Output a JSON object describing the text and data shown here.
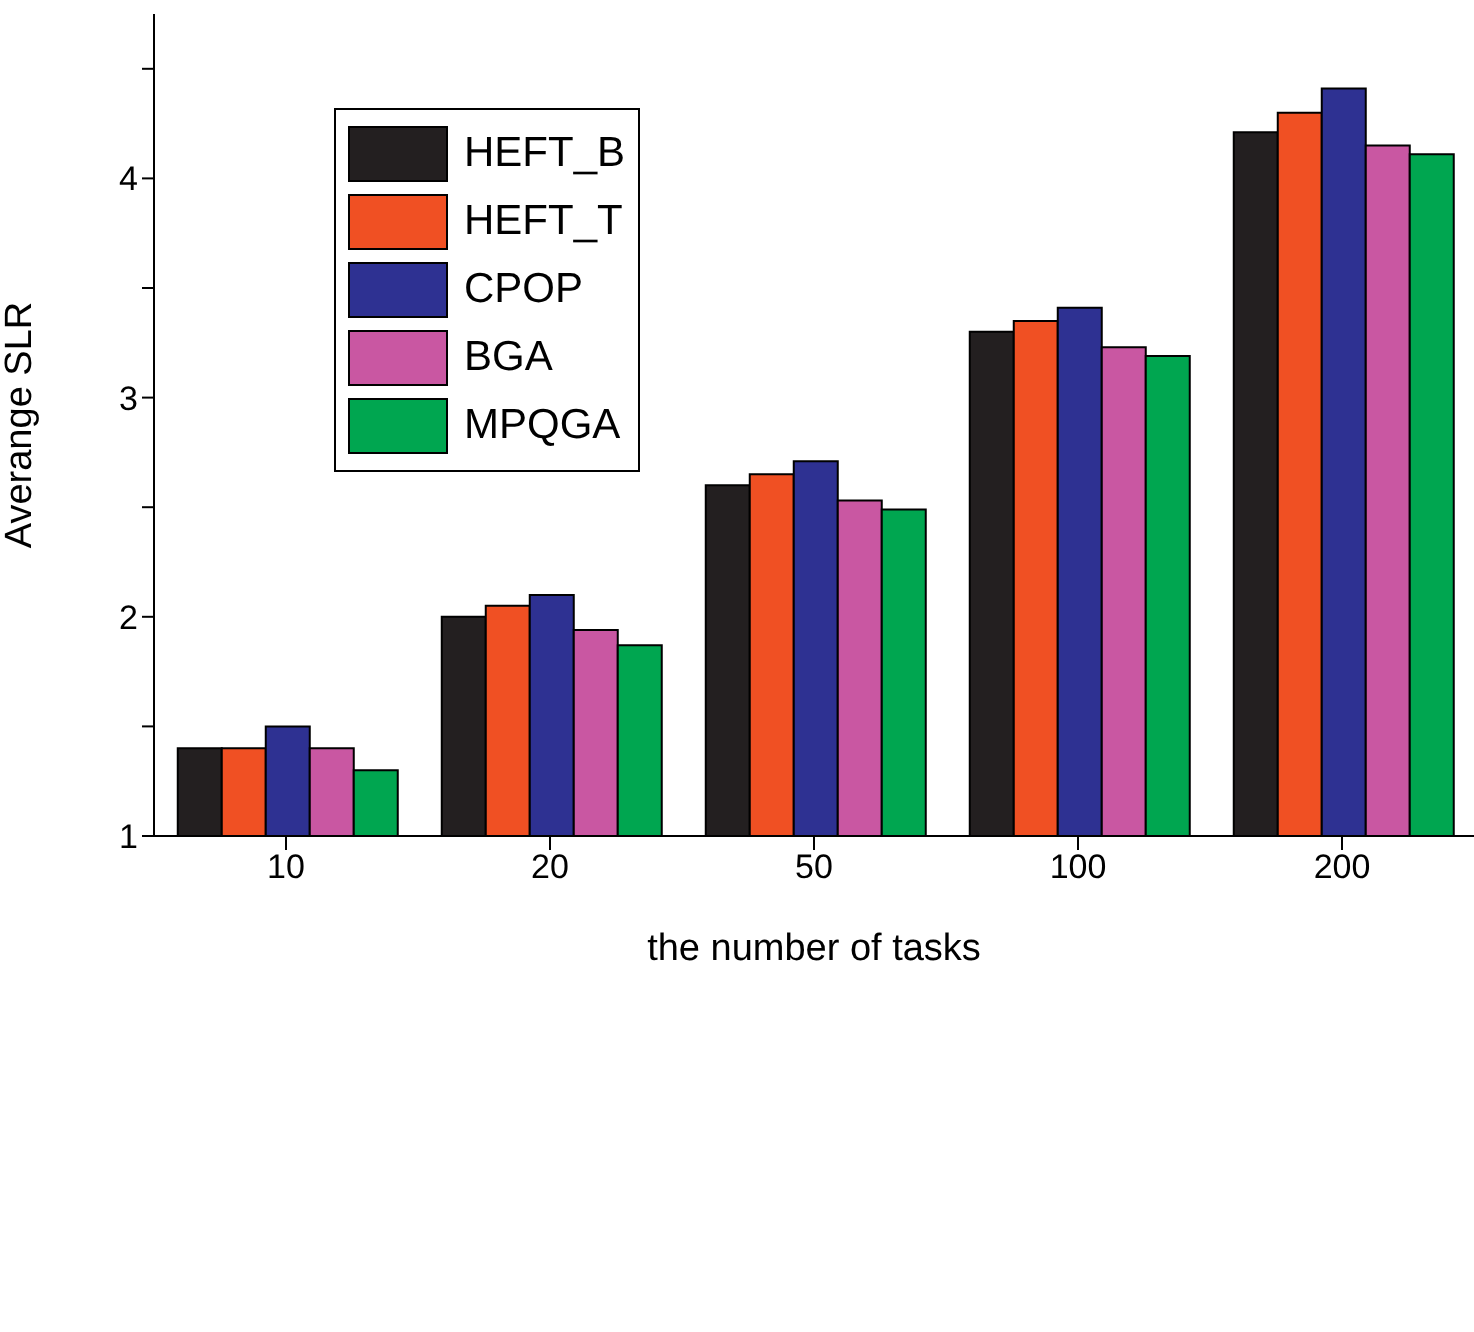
{
  "chart_data": {
    "type": "bar",
    "xlabel": "the number of tasks",
    "ylabel": "Averange SLR",
    "categories": [
      "10",
      "20",
      "50",
      "100",
      "200"
    ],
    "series": [
      {
        "name": "HEFT_B",
        "color": "#231f20",
        "values": [
          1.4,
          2.0,
          2.6,
          3.3,
          4.21
        ]
      },
      {
        "name": "HEFT_T",
        "color": "#f05023",
        "values": [
          1.4,
          2.05,
          2.65,
          3.35,
          4.3
        ]
      },
      {
        "name": "CPOP",
        "color": "#2e3192",
        "values": [
          1.5,
          2.1,
          2.71,
          3.41,
          4.41
        ]
      },
      {
        "name": "BGA",
        "color": "#c957a2",
        "values": [
          1.4,
          1.94,
          2.53,
          3.23,
          4.15
        ]
      },
      {
        "name": "MPQGA",
        "color": "#00a650",
        "values": [
          1.3,
          1.87,
          2.49,
          3.19,
          4.11
        ]
      }
    ],
    "ylim": [
      1,
      4.75
    ],
    "yticks": [
      1,
      {
        "value": 1.5,
        "label": null
      },
      2,
      {
        "value": 2.5,
        "label": null
      },
      3,
      {
        "value": 3.5,
        "label": null
      },
      4,
      {
        "value": 4.5,
        "label": null
      }
    ],
    "grid": false,
    "legend": "top left"
  }
}
